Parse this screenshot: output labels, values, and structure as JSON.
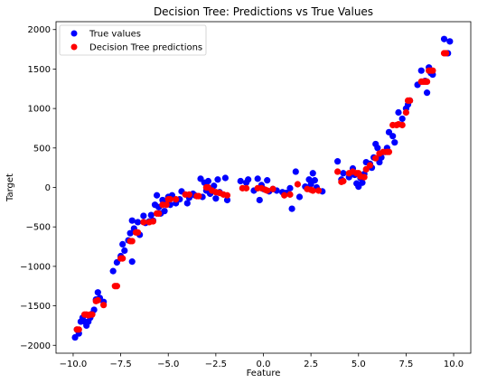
{
  "chart_data": {
    "type": "scatter",
    "title": "Decision Tree: Predictions vs True Values",
    "xlabel": "Feature",
    "ylabel": "Target",
    "xlim": [
      -10.9,
      10.9
    ],
    "ylim": [
      -2100,
      2100
    ],
    "x_ticks": [
      -10,
      -7.5,
      -5,
      -2.5,
      0,
      2.5,
      5,
      7.5,
      10
    ],
    "x_tick_labels": [
      "−10.0",
      "−7.5",
      "−5.0",
      "−2.5",
      "0.0",
      "2.5",
      "5.0",
      "7.5",
      "10.0"
    ],
    "y_ticks": [
      -2000,
      -1500,
      -1000,
      -500,
      0,
      500,
      1000,
      1500,
      2000
    ],
    "y_tick_labels": [
      "−2000",
      "−1500",
      "−1000",
      "−500",
      "0",
      "500",
      "1000",
      "1500",
      "2000"
    ],
    "grid": false,
    "legend_position": "top-left",
    "series": [
      {
        "name": "True values",
        "color": "#0000ff",
        "points": [
          [
            -9.9,
            -1900
          ],
          [
            -9.8,
            -1800
          ],
          [
            -9.7,
            -1850
          ],
          [
            -9.6,
            -1700
          ],
          [
            -9.5,
            -1650
          ],
          [
            -9.4,
            -1700
          ],
          [
            -9.3,
            -1750
          ],
          [
            -9.2,
            -1700
          ],
          [
            -9.1,
            -1650
          ],
          [
            -9.0,
            -1600
          ],
          [
            -8.9,
            -1550
          ],
          [
            -8.8,
            -1420
          ],
          [
            -8.7,
            -1330
          ],
          [
            -8.6,
            -1400
          ],
          [
            -8.4,
            -1450
          ],
          [
            -7.9,
            -1060
          ],
          [
            -7.7,
            -950
          ],
          [
            -7.5,
            -870
          ],
          [
            -7.4,
            -720
          ],
          [
            -7.3,
            -800
          ],
          [
            -7.1,
            -670
          ],
          [
            -7.0,
            -580
          ],
          [
            -6.9,
            -940
          ],
          [
            -6.9,
            -420
          ],
          [
            -6.8,
            -520
          ],
          [
            -6.6,
            -440
          ],
          [
            -6.5,
            -600
          ],
          [
            -6.3,
            -360
          ],
          [
            -6.2,
            -450
          ],
          [
            -6.0,
            -430
          ],
          [
            -5.9,
            -350
          ],
          [
            -5.8,
            -420
          ],
          [
            -5.7,
            -220
          ],
          [
            -5.6,
            -100
          ],
          [
            -5.5,
            -250
          ],
          [
            -5.4,
            -330
          ],
          [
            -5.3,
            -160
          ],
          [
            -5.2,
            -300
          ],
          [
            -5.1,
            -180
          ],
          [
            -5.0,
            -120
          ],
          [
            -4.9,
            -220
          ],
          [
            -4.8,
            -100
          ],
          [
            -4.6,
            -200
          ],
          [
            -4.4,
            -150
          ],
          [
            -4.3,
            -50
          ],
          [
            -4.0,
            -200
          ],
          [
            -3.9,
            -130
          ],
          [
            -3.7,
            -80
          ],
          [
            -3.6,
            -100
          ],
          [
            -3.3,
            110
          ],
          [
            -3.2,
            -120
          ],
          [
            -3.1,
            60
          ],
          [
            -3.0,
            -40
          ],
          [
            -2.9,
            80
          ],
          [
            -2.8,
            -80
          ],
          [
            -2.6,
            20
          ],
          [
            -2.5,
            -140
          ],
          [
            -2.4,
            100
          ],
          [
            -2.3,
            -60
          ],
          [
            -2.0,
            120
          ],
          [
            -1.9,
            -160
          ],
          [
            -1.2,
            80
          ],
          [
            -0.9,
            60
          ],
          [
            -0.8,
            100
          ],
          [
            -0.5,
            -40
          ],
          [
            -0.3,
            110
          ],
          [
            -0.2,
            -160
          ],
          [
            -0.1,
            30
          ],
          [
            0.0,
            -20
          ],
          [
            0.2,
            90
          ],
          [
            0.3,
            -50
          ],
          [
            0.5,
            -20
          ],
          [
            0.7,
            -40
          ],
          [
            1.0,
            -60
          ],
          [
            1.2,
            -70
          ],
          [
            1.4,
            -10
          ],
          [
            1.5,
            -270
          ],
          [
            1.7,
            200
          ],
          [
            1.9,
            -120
          ],
          [
            2.2,
            10
          ],
          [
            2.4,
            100
          ],
          [
            2.5,
            40
          ],
          [
            2.6,
            180
          ],
          [
            2.7,
            90
          ],
          [
            2.8,
            0
          ],
          [
            3.1,
            -50
          ],
          [
            3.9,
            330
          ],
          [
            4.1,
            100
          ],
          [
            4.2,
            180
          ],
          [
            4.5,
            130
          ],
          [
            4.6,
            180
          ],
          [
            4.7,
            240
          ],
          [
            4.8,
            160
          ],
          [
            4.9,
            50
          ],
          [
            5.0,
            10
          ],
          [
            5.1,
            120
          ],
          [
            5.2,
            60
          ],
          [
            5.3,
            170
          ],
          [
            5.4,
            320
          ],
          [
            5.6,
            300
          ],
          [
            5.7,
            250
          ],
          [
            5.8,
            380
          ],
          [
            5.9,
            550
          ],
          [
            6.0,
            500
          ],
          [
            6.1,
            320
          ],
          [
            6.2,
            380
          ],
          [
            6.4,
            450
          ],
          [
            6.5,
            500
          ],
          [
            6.6,
            700
          ],
          [
            6.8,
            650
          ],
          [
            6.9,
            570
          ],
          [
            7.1,
            950
          ],
          [
            7.3,
            870
          ],
          [
            7.5,
            1000
          ],
          [
            7.6,
            1050
          ],
          [
            7.7,
            1100
          ],
          [
            8.1,
            1300
          ],
          [
            8.3,
            1480
          ],
          [
            8.5,
            1350
          ],
          [
            8.6,
            1200
          ],
          [
            8.7,
            1520
          ],
          [
            8.8,
            1450
          ],
          [
            8.9,
            1430
          ],
          [
            9.5,
            1880
          ],
          [
            9.7,
            1700
          ],
          [
            9.8,
            1850
          ]
        ]
      },
      {
        "name": "Decision Tree predictions",
        "color": "#ff0000",
        "points": [
          [
            -9.8,
            -1800
          ],
          [
            -9.7,
            -1800
          ],
          [
            -9.4,
            -1610
          ],
          [
            -9.3,
            -1610
          ],
          [
            -9.2,
            -1620
          ],
          [
            -9.1,
            -1610
          ],
          [
            -9.0,
            -1610
          ],
          [
            -8.8,
            -1440
          ],
          [
            -8.7,
            -1430
          ],
          [
            -8.4,
            -1490
          ],
          [
            -7.8,
            -1250
          ],
          [
            -7.7,
            -1250
          ],
          [
            -7.5,
            -900
          ],
          [
            -7.4,
            -900
          ],
          [
            -7.0,
            -680
          ],
          [
            -6.9,
            -680
          ],
          [
            -6.7,
            -570
          ],
          [
            -6.6,
            -570
          ],
          [
            -6.3,
            -440
          ],
          [
            -6.0,
            -440
          ],
          [
            -5.8,
            -430
          ],
          [
            -5.6,
            -330
          ],
          [
            -5.5,
            -330
          ],
          [
            -5.3,
            -220
          ],
          [
            -5.1,
            -220
          ],
          [
            -5.0,
            -150
          ],
          [
            -4.9,
            -150
          ],
          [
            -4.6,
            -150
          ],
          [
            -4.1,
            -90
          ],
          [
            -3.9,
            -90
          ],
          [
            -3.5,
            -110
          ],
          [
            -3.4,
            -110
          ],
          [
            -3.0,
            0
          ],
          [
            -2.9,
            0
          ],
          [
            -2.7,
            -40
          ],
          [
            -2.5,
            -60
          ],
          [
            -2.3,
            -70
          ],
          [
            -2.1,
            -90
          ],
          [
            -1.9,
            -100
          ],
          [
            -1.1,
            -10
          ],
          [
            -0.9,
            -10
          ],
          [
            -0.3,
            -10
          ],
          [
            -0.1,
            -10
          ],
          [
            0.1,
            -30
          ],
          [
            0.2,
            -40
          ],
          [
            0.5,
            -20
          ],
          [
            1.1,
            -100
          ],
          [
            1.4,
            -90
          ],
          [
            1.8,
            40
          ],
          [
            2.3,
            -20
          ],
          [
            2.5,
            -30
          ],
          [
            2.6,
            -40
          ],
          [
            2.9,
            -40
          ],
          [
            3.9,
            200
          ],
          [
            4.1,
            70
          ],
          [
            4.2,
            80
          ],
          [
            4.5,
            180
          ],
          [
            4.7,
            200
          ],
          [
            4.9,
            180
          ],
          [
            5.0,
            180
          ],
          [
            5.1,
            140
          ],
          [
            5.3,
            130
          ],
          [
            5.4,
            230
          ],
          [
            5.6,
            280
          ],
          [
            5.9,
            370
          ],
          [
            6.1,
            430
          ],
          [
            6.3,
            450
          ],
          [
            6.5,
            450
          ],
          [
            6.6,
            450
          ],
          [
            6.8,
            790
          ],
          [
            7.0,
            790
          ],
          [
            7.1,
            800
          ],
          [
            7.3,
            790
          ],
          [
            7.5,
            950
          ],
          [
            7.6,
            1100
          ],
          [
            7.7,
            1100
          ],
          [
            8.3,
            1340
          ],
          [
            8.4,
            1340
          ],
          [
            8.5,
            1340
          ],
          [
            8.6,
            1340
          ],
          [
            8.7,
            1480
          ],
          [
            8.8,
            1480
          ],
          [
            8.9,
            1480
          ],
          [
            9.5,
            1700
          ],
          [
            9.6,
            1700
          ]
        ]
      }
    ]
  }
}
